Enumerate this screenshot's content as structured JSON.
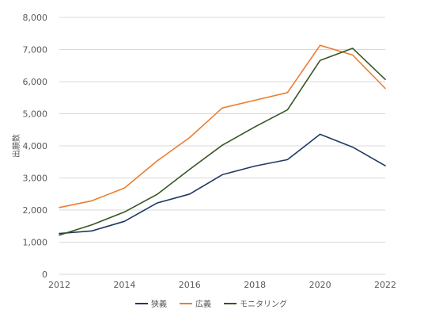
{
  "chart_data": {
    "type": "line",
    "ylabel": "出願数",
    "ylim": [
      0,
      8000
    ],
    "y_ticks": [
      0,
      1000,
      2000,
      3000,
      4000,
      5000,
      6000,
      7000,
      8000
    ],
    "y_tick_labels": [
      "0",
      "1,000",
      "2,000",
      "3,000",
      "4,000",
      "5,000",
      "6,000",
      "7,000",
      "8,000"
    ],
    "xlim": [
      2012,
      2022
    ],
    "x_ticks": [
      2012,
      2014,
      2016,
      2018,
      2020,
      2022
    ],
    "x_tick_labels": [
      "2012",
      "2014",
      "2016",
      "2018",
      "2020",
      "2022"
    ],
    "x": [
      2012,
      2013,
      2014,
      2015,
      2016,
      2017,
      2018,
      2019,
      2020,
      2021,
      2022
    ],
    "grid": "horizontal",
    "legend_position": "bottom",
    "series": [
      {
        "name": "狭義",
        "color": "#1f3864",
        "values": [
          1270,
          1350,
          1650,
          2220,
          2500,
          3100,
          3370,
          3570,
          4360,
          3960,
          3380
        ]
      },
      {
        "name": "広義",
        "color": "#ed7d31",
        "values": [
          2080,
          2290,
          2690,
          3530,
          4260,
          5180,
          5420,
          5660,
          7130,
          6830,
          5790
        ]
      },
      {
        "name": "モニタリング",
        "color": "#375623",
        "values": [
          1220,
          1540,
          1940,
          2490,
          3270,
          4020,
          4590,
          5120,
          6660,
          7040,
          6070
        ]
      }
    ]
  }
}
